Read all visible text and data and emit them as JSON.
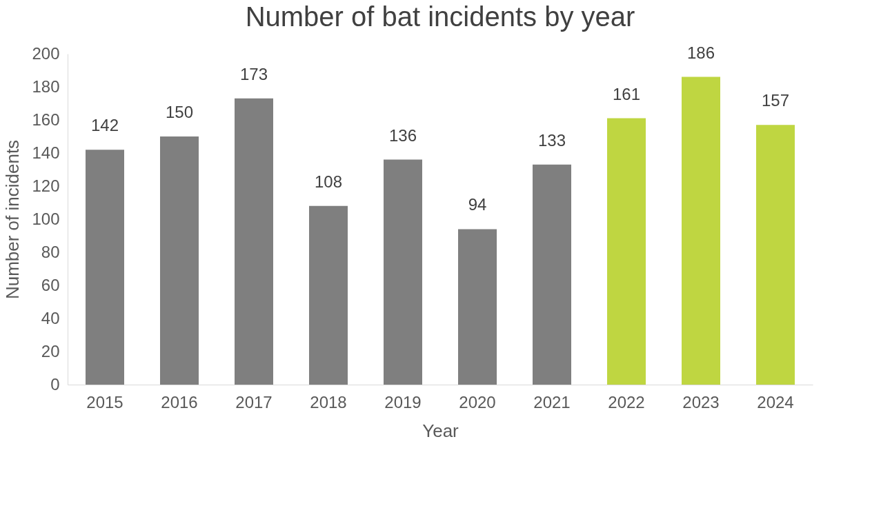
{
  "chart_data": {
    "type": "bar",
    "title": "Number of bat incidents by year",
    "xlabel": "Year",
    "ylabel": "Number of incidents",
    "categories": [
      "2015",
      "2016",
      "2017",
      "2018",
      "2019",
      "2020",
      "2021",
      "2022",
      "2023",
      "2024"
    ],
    "values": [
      142,
      150,
      173,
      108,
      136,
      94,
      133,
      161,
      186,
      157
    ],
    "colors": [
      "#7f7f7f",
      "#7f7f7f",
      "#7f7f7f",
      "#7f7f7f",
      "#7f7f7f",
      "#7f7f7f",
      "#7f7f7f",
      "#bfd641",
      "#bfd641",
      "#bfd641"
    ],
    "ylim": [
      0,
      200
    ],
    "yticks": [
      0,
      20,
      40,
      60,
      80,
      100,
      120,
      140,
      160,
      180,
      200
    ],
    "grid": false,
    "data_labels": true
  }
}
